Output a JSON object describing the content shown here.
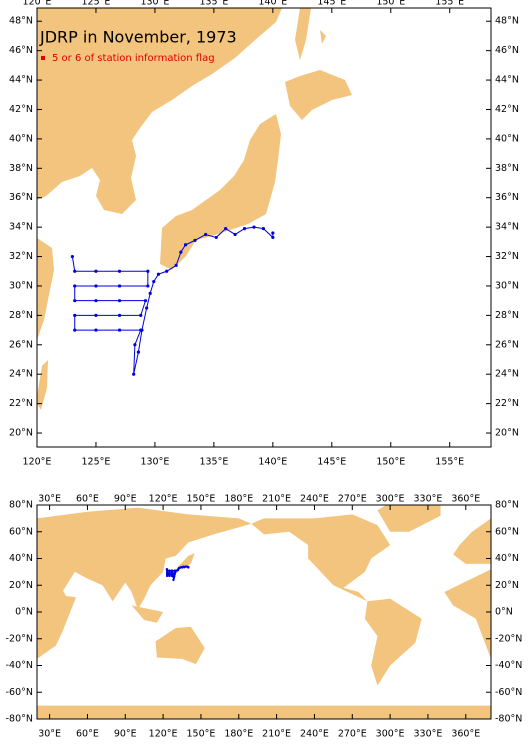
{
  "title": "JDRP in November, 1973",
  "legend": "5 or 6 of station information flag",
  "track": {
    "lon": [
      123.0,
      123.2,
      125.0,
      127.0,
      129.4,
      129.4,
      127.0,
      125.0,
      123.2,
      123.2,
      125.0,
      127.0,
      129.2,
      128.8,
      127.0,
      125.0,
      123.2,
      123.2,
      125.0,
      127.0,
      128.8,
      128.3,
      128.2,
      128.6,
      128.9,
      129.3,
      129.6,
      129.9,
      130.3,
      131.0,
      131.8,
      132.2,
      132.6,
      133.4,
      134.3,
      135.2,
      136.0,
      136.8,
      137.6,
      138.4,
      139.2,
      140.0,
      140.0
    ],
    "lat": [
      32.0,
      31.0,
      31.0,
      31.0,
      31.0,
      30.0,
      30.0,
      30.0,
      30.0,
      29.0,
      29.0,
      29.0,
      29.0,
      28.0,
      28.0,
      28.0,
      28.0,
      27.0,
      27.0,
      27.0,
      27.0,
      26.0,
      24.0,
      25.5,
      27.0,
      28.5,
      29.5,
      30.3,
      30.8,
      31.0,
      31.4,
      32.3,
      32.8,
      33.1,
      33.5,
      33.3,
      33.9,
      33.5,
      33.9,
      34.0,
      33.9,
      33.3,
      33.6
    ]
  },
  "maps": [
    {
      "xlim": [
        120,
        158.5
      ],
      "ylim": [
        19.05,
        48.9
      ],
      "xticks": [
        {
          "value": 120,
          "label": "120°E"
        },
        {
          "value": 125,
          "label": "125°E"
        },
        {
          "value": 130,
          "label": "130°E"
        },
        {
          "value": 135,
          "label": "135°E"
        },
        {
          "value": 140,
          "label": "140°E"
        },
        {
          "value": 145,
          "label": "145°E"
        },
        {
          "value": 150,
          "label": "150°E"
        },
        {
          "value": 155,
          "label": "155°E"
        }
      ],
      "yticks": [
        {
          "value": 20,
          "label": "20°N"
        },
        {
          "value": 22,
          "label": "22°N"
        },
        {
          "value": 24,
          "label": "24°N"
        },
        {
          "value": 26,
          "label": "26°N"
        },
        {
          "value": 28,
          "label": "28°N"
        },
        {
          "value": 30,
          "label": "30°N"
        },
        {
          "value": 32,
          "label": "32°N"
        },
        {
          "value": 34,
          "label": "34°N"
        },
        {
          "value": 36,
          "label": "36°N"
        },
        {
          "value": 38,
          "label": "38°N"
        },
        {
          "value": 40,
          "label": "40°N"
        },
        {
          "value": 42,
          "label": "42°N"
        },
        {
          "value": 44,
          "label": "44°N"
        },
        {
          "value": 46,
          "label": "46°N"
        },
        {
          "value": 48,
          "label": "48°N"
        }
      ]
    },
    {
      "xlim": [
        20,
        380
      ],
      "ylim": [
        -80,
        80
      ],
      "xticks": [
        {
          "value": 30,
          "label": "30°E"
        },
        {
          "value": 60,
          "label": "60°E"
        },
        {
          "value": 90,
          "label": "90°E"
        },
        {
          "value": 120,
          "label": "120°E"
        },
        {
          "value": 150,
          "label": "150°E"
        },
        {
          "value": 180,
          "label": "180°E"
        },
        {
          "value": 210,
          "label": "210°E"
        },
        {
          "value": 240,
          "label": "240°E"
        },
        {
          "value": 270,
          "label": "270°E"
        },
        {
          "value": 300,
          "label": "300°E"
        },
        {
          "value": 330,
          "label": "330°E"
        },
        {
          "value": 360,
          "label": "360°E"
        }
      ],
      "yticks": [
        {
          "value": -80,
          "label": "-80°N"
        },
        {
          "value": -60,
          "label": "-60°N"
        },
        {
          "value": -40,
          "label": "-40°N"
        },
        {
          "value": -20,
          "label": "-20°N"
        },
        {
          "value": 0,
          "label": "0°N"
        },
        {
          "value": 20,
          "label": "20°N"
        },
        {
          "value": 40,
          "label": "40°N"
        },
        {
          "value": 60,
          "label": "60°N"
        },
        {
          "value": 80,
          "label": "80°N"
        }
      ]
    }
  ]
}
